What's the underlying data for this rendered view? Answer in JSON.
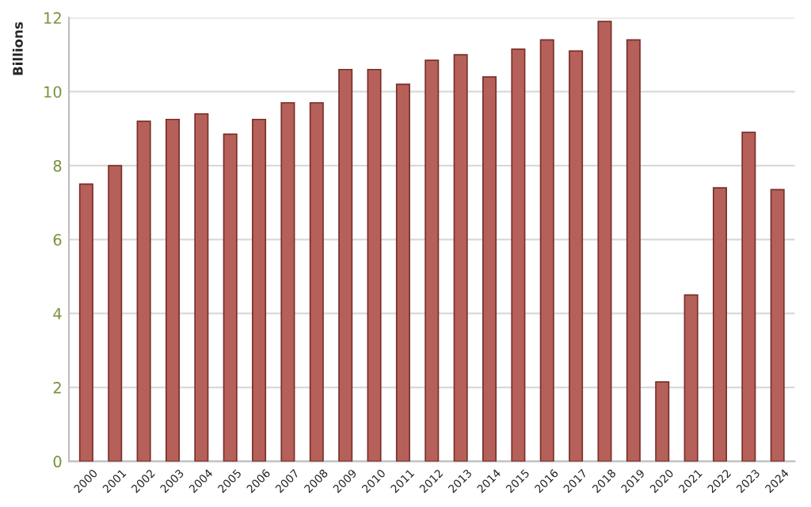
{
  "chart_data": {
    "type": "bar",
    "ylabel": "Billions",
    "categories": [
      "2000",
      "2001",
      "2002",
      "2003",
      "2004",
      "2005",
      "2006",
      "2007",
      "2008",
      "2009",
      "2010",
      "2011",
      "2012",
      "2013",
      "2014",
      "2015",
      "2016",
      "2017",
      "2018",
      "2019",
      "2020",
      "2021",
      "2022",
      "2023",
      "2024"
    ],
    "values": [
      7.5,
      8.0,
      9.2,
      9.25,
      9.4,
      8.85,
      9.25,
      9.7,
      9.7,
      10.6,
      10.6,
      10.2,
      10.85,
      11.0,
      10.4,
      11.15,
      11.4,
      11.1,
      11.9,
      11.4,
      2.15,
      4.5,
      7.4,
      8.9,
      7.35
    ],
    "color": "#b5615a",
    "ylim": [
      0,
      12
    ],
    "yticks": [
      0,
      2,
      4,
      6,
      8,
      10,
      12
    ],
    "grid": "y",
    "legend": false
  }
}
